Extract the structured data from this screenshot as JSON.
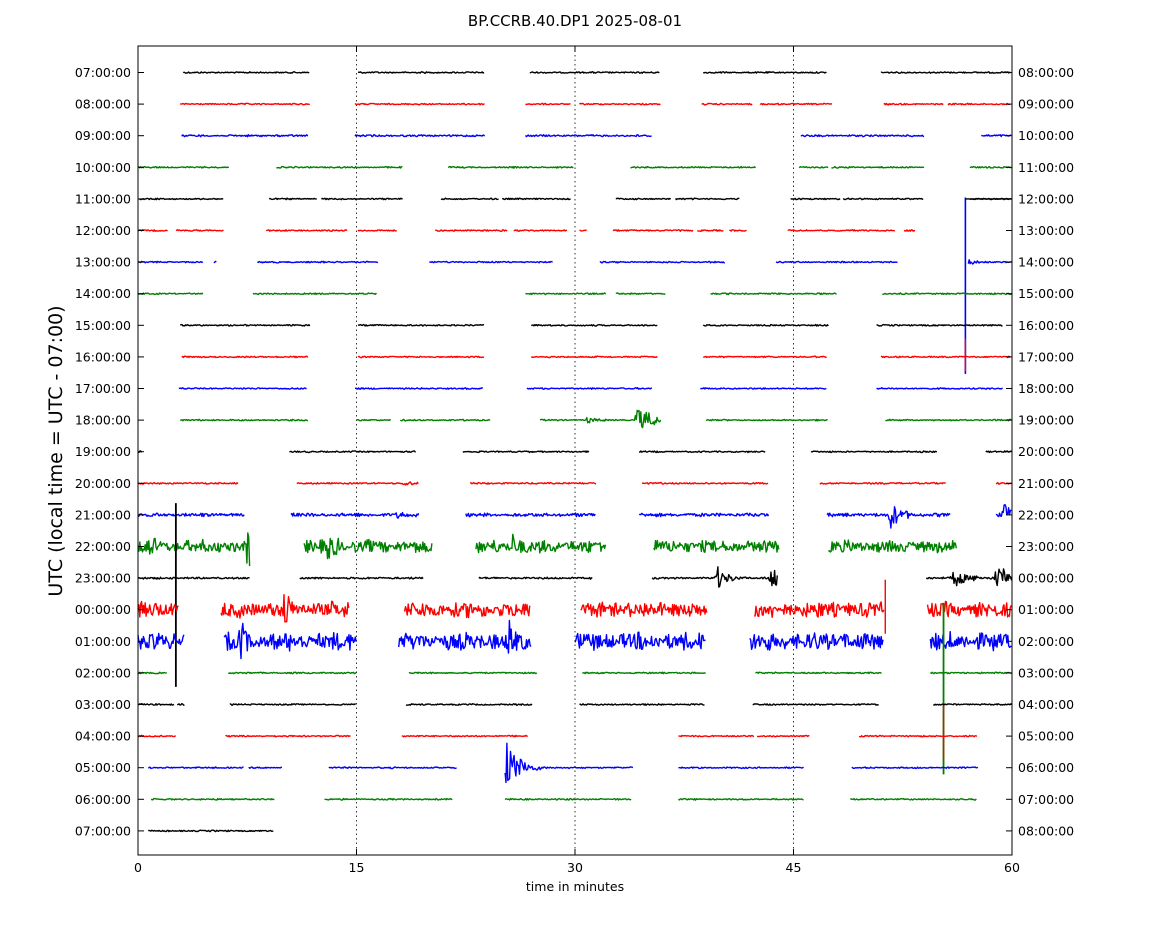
{
  "chart_data": {
    "type": "line",
    "title": "BP.CCRB.40.DP1 2025-08-01",
    "xlabel": "time in minutes",
    "ylabel": "UTC (local time = UTC - 07:00)",
    "xlim": [
      0,
      60
    ],
    "x_ticks": [
      "0",
      "15",
      "30",
      "45",
      "60"
    ],
    "x_tick_values": [
      0,
      15,
      30,
      45,
      60
    ],
    "grid": "vertical dotted at 15, 30, 45",
    "series_colors": [
      "#000000",
      "#ff0000",
      "#0000ff",
      "#008000"
    ],
    "rows": [
      {
        "left": "07:00:00",
        "right": "08:00:00",
        "color": "#000000",
        "amp": 1,
        "segments": [
          [
            3.1,
            11.8
          ],
          [
            15.1,
            23.8
          ],
          [
            26.9,
            35.8
          ],
          [
            38.8,
            47.3
          ],
          [
            51.0,
            59.9
          ]
        ],
        "events": []
      },
      {
        "left": "08:00:00",
        "right": "09:00:00",
        "color": "#ff0000",
        "amp": 1,
        "segments": [
          [
            2.9,
            11.8
          ],
          [
            14.9,
            23.8
          ],
          [
            26.6,
            29.7
          ],
          [
            30.3,
            35.9
          ],
          [
            38.7,
            42.2
          ],
          [
            42.7,
            47.7
          ],
          [
            51.2,
            55.3
          ],
          [
            55.6,
            59.9
          ]
        ],
        "events": []
      },
      {
        "left": "09:00:00",
        "right": "10:00:00",
        "color": "#0000ff",
        "amp": 1.3,
        "segments": [
          [
            3.0,
            11.7
          ],
          [
            14.9,
            23.8
          ],
          [
            26.6,
            35.3
          ],
          [
            45.5,
            54.0
          ],
          [
            57.9,
            60.0
          ]
        ],
        "events": []
      },
      {
        "left": "10:00:00",
        "right": "11:00:00",
        "color": "#008000",
        "amp": 1,
        "segments": [
          [
            0.0,
            6.3
          ],
          [
            9.5,
            18.2
          ],
          [
            21.3,
            29.9
          ],
          [
            33.8,
            42.4
          ],
          [
            45.4,
            47.4
          ],
          [
            47.6,
            54.0
          ],
          [
            57.1,
            60.0
          ]
        ],
        "events": []
      },
      {
        "left": "11:00:00",
        "right": "12:00:00",
        "color": "#000000",
        "amp": 1,
        "segments": [
          [
            0.1,
            5.9
          ],
          [
            9.0,
            12.3
          ],
          [
            12.6,
            18.2
          ],
          [
            20.8,
            24.8
          ],
          [
            25.0,
            29.7
          ],
          [
            32.8,
            36.6
          ],
          [
            36.9,
            41.3
          ],
          [
            44.8,
            48.2
          ],
          [
            48.4,
            53.9
          ],
          [
            57.1,
            60.0
          ]
        ],
        "events": [
          {
            "x": 56.8,
            "amp": 14,
            "type": "spike-up"
          }
        ]
      },
      {
        "left": "12:00:00",
        "right": "13:00:00",
        "color": "#ff0000",
        "amp": 1,
        "segments": [
          [
            0.0,
            2.1
          ],
          [
            2.6,
            5.9
          ],
          [
            8.8,
            14.4
          ],
          [
            15.1,
            17.8
          ],
          [
            20.4,
            25.4
          ],
          [
            25.8,
            29.5
          ],
          [
            30.3,
            30.8
          ],
          [
            32.6,
            38.1
          ],
          [
            38.4,
            40.2
          ],
          [
            40.6,
            41.8
          ],
          [
            44.6,
            52.0
          ],
          [
            52.6,
            53.4
          ]
        ],
        "events": []
      },
      {
        "left": "13:00:00",
        "right": "14:00:00",
        "color": "#0000ff",
        "amp": 1,
        "segments": [
          [
            0.0,
            4.5
          ],
          [
            5.2,
            5.4
          ],
          [
            8.2,
            16.5
          ],
          [
            20.0,
            28.5
          ],
          [
            31.7,
            40.3
          ],
          [
            43.8,
            52.2
          ],
          [
            57.0,
            60.0
          ]
        ],
        "events": [
          {
            "x": 56.8,
            "amp": 5,
            "type": "burst"
          }
        ]
      },
      {
        "left": "14:00:00",
        "right": "15:00:00",
        "color": "#008000",
        "amp": 1,
        "segments": [
          [
            0.0,
            4.5
          ],
          [
            7.9,
            16.4
          ],
          [
            26.6,
            32.1
          ],
          [
            32.8,
            36.2
          ],
          [
            39.3,
            48.0
          ],
          [
            51.1,
            60.0
          ]
        ],
        "events": []
      },
      {
        "left": "15:00:00",
        "right": "16:00:00",
        "color": "#000000",
        "amp": 1,
        "segments": [
          [
            2.9,
            11.8
          ],
          [
            15.1,
            23.8
          ],
          [
            27.0,
            35.7
          ],
          [
            38.8,
            47.4
          ],
          [
            50.7,
            59.4
          ]
        ],
        "events": []
      },
      {
        "left": "16:00:00",
        "right": "17:00:00",
        "color": "#ff0000",
        "amp": 1,
        "segments": [
          [
            3.0,
            11.7
          ],
          [
            15.1,
            23.8
          ],
          [
            27.0,
            35.7
          ],
          [
            38.8,
            47.3
          ],
          [
            51.0,
            59.9
          ]
        ],
        "events": [
          {
            "x": 56.8,
            "amp": 18,
            "type": "spike-down-line"
          }
        ]
      },
      {
        "left": "17:00:00",
        "right": "18:00:00",
        "color": "#0000ff",
        "amp": 1,
        "segments": [
          [
            2.8,
            11.6
          ],
          [
            14.9,
            23.7
          ],
          [
            26.7,
            35.3
          ],
          [
            38.6,
            47.3
          ],
          [
            50.7,
            59.4
          ]
        ],
        "events": []
      },
      {
        "left": "18:00:00",
        "right": "19:00:00",
        "color": "#008000",
        "amp": 1,
        "segments": [
          [
            2.9,
            11.7
          ],
          [
            15.0,
            17.4
          ],
          [
            18.0,
            24.2
          ],
          [
            27.6,
            35.9
          ],
          [
            39.0,
            47.4
          ],
          [
            51.3,
            60.0
          ]
        ],
        "events": [
          {
            "x": 30.8,
            "amp": 5,
            "type": "burst"
          },
          {
            "x": 34.3,
            "amp": 24,
            "type": "burst"
          }
        ]
      },
      {
        "left": "19:00:00",
        "right": "20:00:00",
        "color": "#000000",
        "amp": 1,
        "segments": [
          [
            0.0,
            0.3
          ],
          [
            10.4,
            19.1
          ],
          [
            22.3,
            31.0
          ],
          [
            34.4,
            43.1
          ],
          [
            46.2,
            54.9
          ],
          [
            58.2,
            60.0
          ]
        ],
        "events": []
      },
      {
        "left": "20:00:00",
        "right": "21:00:00",
        "color": "#ff0000",
        "amp": 1.1,
        "segments": [
          [
            0.0,
            6.9
          ],
          [
            10.9,
            19.3
          ],
          [
            22.8,
            31.5
          ],
          [
            34.6,
            43.3
          ],
          [
            46.8,
            55.5
          ],
          [
            58.9,
            60.0
          ]
        ],
        "events": [
          {
            "x": 18.3,
            "amp": 4,
            "type": "burst"
          }
        ]
      },
      {
        "left": "21:00:00",
        "right": "22:00:00",
        "color": "#0000ff",
        "amp": 2.4,
        "segments": [
          [
            0.0,
            7.3
          ],
          [
            10.5,
            19.3
          ],
          [
            22.5,
            31.4
          ],
          [
            34.4,
            43.3
          ],
          [
            47.3,
            55.8
          ],
          [
            58.9,
            60.0
          ]
        ],
        "events": [
          {
            "x": 17.8,
            "amp": 6,
            "type": "burst"
          },
          {
            "x": 51.7,
            "amp": 18,
            "type": "burst"
          },
          {
            "x": 59.5,
            "amp": 18,
            "type": "burst"
          }
        ]
      },
      {
        "left": "22:00:00",
        "right": "23:00:00",
        "color": "#008000",
        "amp": 8.5,
        "segments": [
          [
            0.0,
            7.7
          ],
          [
            11.4,
            20.2
          ],
          [
            23.2,
            32.1
          ],
          [
            35.4,
            44.0
          ],
          [
            47.4,
            56.2
          ]
        ],
        "events": [
          {
            "x": 0.5,
            "amp": 22,
            "type": "burst"
          },
          {
            "x": 7.5,
            "amp": 30,
            "type": "burst"
          },
          {
            "x": 13.0,
            "amp": 28,
            "type": "burst"
          },
          {
            "x": 25.7,
            "amp": 25,
            "type": "burst"
          }
        ]
      },
      {
        "left": "23:00:00",
        "right": "00:00:00",
        "color": "#000000",
        "amp": 1.3,
        "segments": [
          [
            0.0,
            7.7
          ],
          [
            11.1,
            19.6
          ],
          [
            23.4,
            31.2
          ],
          [
            35.3,
            43.9
          ],
          [
            54.1,
            60.0
          ]
        ],
        "events": [
          {
            "x": 2.6,
            "amp": 75,
            "type": "spike-both"
          },
          {
            "x": 39.8,
            "amp": 14,
            "type": "burst"
          },
          {
            "x": 43.5,
            "amp": 20,
            "type": "burst"
          },
          {
            "x": 56.0,
            "amp": 18,
            "type": "burst"
          },
          {
            "x": 59.0,
            "amp": 22,
            "type": "burst"
          }
        ]
      },
      {
        "left": "00:00:00",
        "right": "01:00:00",
        "color": "#ff0000",
        "amp": 10.5,
        "segments": [
          [
            0.0,
            2.8
          ],
          [
            5.7,
            14.5
          ],
          [
            18.3,
            26.9
          ],
          [
            30.4,
            39.1
          ],
          [
            42.3,
            51.2
          ],
          [
            54.2,
            60.0
          ]
        ],
        "events": [
          {
            "x": 10.0,
            "amp": 28,
            "type": "burst"
          },
          {
            "x": 51.3,
            "amp": 30,
            "type": "spike-down-line"
          }
        ]
      },
      {
        "left": "01:00:00",
        "right": "02:00:00",
        "color": "#0000ff",
        "amp": 12,
        "segments": [
          [
            0.0,
            3.2
          ],
          [
            5.9,
            15.0
          ],
          [
            17.9,
            27.0
          ],
          [
            30.0,
            39.0
          ],
          [
            42.0,
            51.2
          ],
          [
            54.4,
            60.0
          ]
        ],
        "events": [
          {
            "x": 7.0,
            "amp": 28,
            "type": "burst"
          },
          {
            "x": 25.5,
            "amp": 28,
            "type": "burst"
          }
        ]
      },
      {
        "left": "02:00:00",
        "right": "03:00:00",
        "color": "#008000",
        "amp": 1,
        "segments": [
          [
            0.0,
            2.0
          ],
          [
            6.2,
            15.0
          ],
          [
            18.6,
            27.4
          ],
          [
            30.5,
            39.0
          ],
          [
            42.4,
            51.1
          ],
          [
            54.4,
            60.0
          ]
        ],
        "events": [
          {
            "x": 55.3,
            "amp": 70,
            "type": "spike-both"
          }
        ]
      },
      {
        "left": "03:00:00",
        "right": "04:00:00",
        "color": "#000000",
        "amp": 1,
        "segments": [
          [
            0.0,
            2.5
          ],
          [
            2.7,
            3.2
          ],
          [
            6.3,
            15.0
          ],
          [
            18.4,
            27.1
          ],
          [
            30.3,
            38.9
          ],
          [
            42.2,
            50.9
          ],
          [
            54.6,
            60.0
          ]
        ],
        "events": []
      },
      {
        "left": "04:00:00",
        "right": "05:00:00",
        "color": "#ff0000",
        "amp": 1,
        "segments": [
          [
            0.0,
            2.6
          ],
          [
            6.0,
            14.6
          ],
          [
            18.1,
            26.8
          ],
          [
            37.1,
            42.3
          ],
          [
            42.5,
            46.1
          ],
          [
            49.5,
            57.6
          ]
        ],
        "events": [
          {
            "x": 55.3,
            "amp": 30,
            "type": "spike-down-line"
          }
        ]
      },
      {
        "left": "05:00:00",
        "right": "06:00:00",
        "color": "#0000ff",
        "amp": 1,
        "segments": [
          [
            0.7,
            7.3
          ],
          [
            7.6,
            9.9
          ],
          [
            13.1,
            21.9
          ],
          [
            25.2,
            34.0
          ],
          [
            37.1,
            45.7
          ],
          [
            49.0,
            57.7
          ]
        ],
        "events": [
          {
            "x": 25.2,
            "amp": 40,
            "type": "burst"
          }
        ]
      },
      {
        "left": "06:00:00",
        "right": "07:00:00",
        "color": "#008000",
        "amp": 1,
        "segments": [
          [
            0.9,
            9.4
          ],
          [
            12.8,
            21.6
          ],
          [
            25.2,
            33.9
          ],
          [
            37.1,
            45.7
          ],
          [
            48.9,
            57.6
          ]
        ],
        "events": []
      },
      {
        "left": "07:00:00",
        "right": "08:00:00",
        "color": "#000000",
        "amp": 1,
        "segments": [
          [
            0.7,
            9.3
          ]
        ],
        "events": []
      }
    ]
  }
}
